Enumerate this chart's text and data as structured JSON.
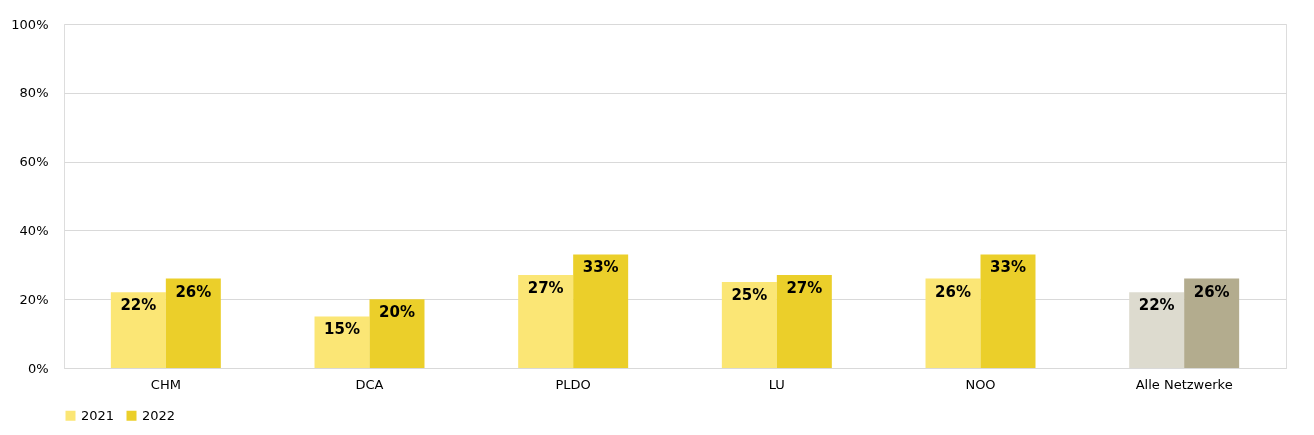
{
  "chart_data": {
    "type": "bar",
    "categories": [
      "CHM",
      "DCA",
      "PLDO",
      "LU",
      "NOO",
      "Alle Netzwerke"
    ],
    "series": [
      {
        "name": "2021",
        "color": "#fbe675",
        "colors": [
          "#fbe675",
          "#fbe675",
          "#fbe675",
          "#fbe675",
          "#fbe675",
          "#dddbcf"
        ],
        "values": [
          22,
          15,
          27,
          25,
          26,
          22
        ],
        "value_labels": [
          "22%",
          "15%",
          "27%",
          "25%",
          "26%",
          "22%"
        ]
      },
      {
        "name": "2022",
        "color": "#ebcf2a",
        "colors": [
          "#ebcf2a",
          "#ebcf2a",
          "#ebcf2a",
          "#ebcf2a",
          "#ebcf2a",
          "#b3ac8e"
        ],
        "values": [
          26,
          20,
          33,
          27,
          33,
          26
        ],
        "value_labels": [
          "26%",
          "20%",
          "33%",
          "27%",
          "33%",
          "26%"
        ]
      }
    ],
    "ylim": [
      0,
      100
    ],
    "yticks": [
      {
        "value": 0,
        "label": "0%"
      },
      {
        "value": 20,
        "label": "20%"
      },
      {
        "value": 40,
        "label": "40%"
      },
      {
        "value": 60,
        "label": "60%"
      },
      {
        "value": 80,
        "label": "80%"
      },
      {
        "value": 100,
        "label": "100%"
      }
    ],
    "grid": "y",
    "legend": "bottom"
  }
}
